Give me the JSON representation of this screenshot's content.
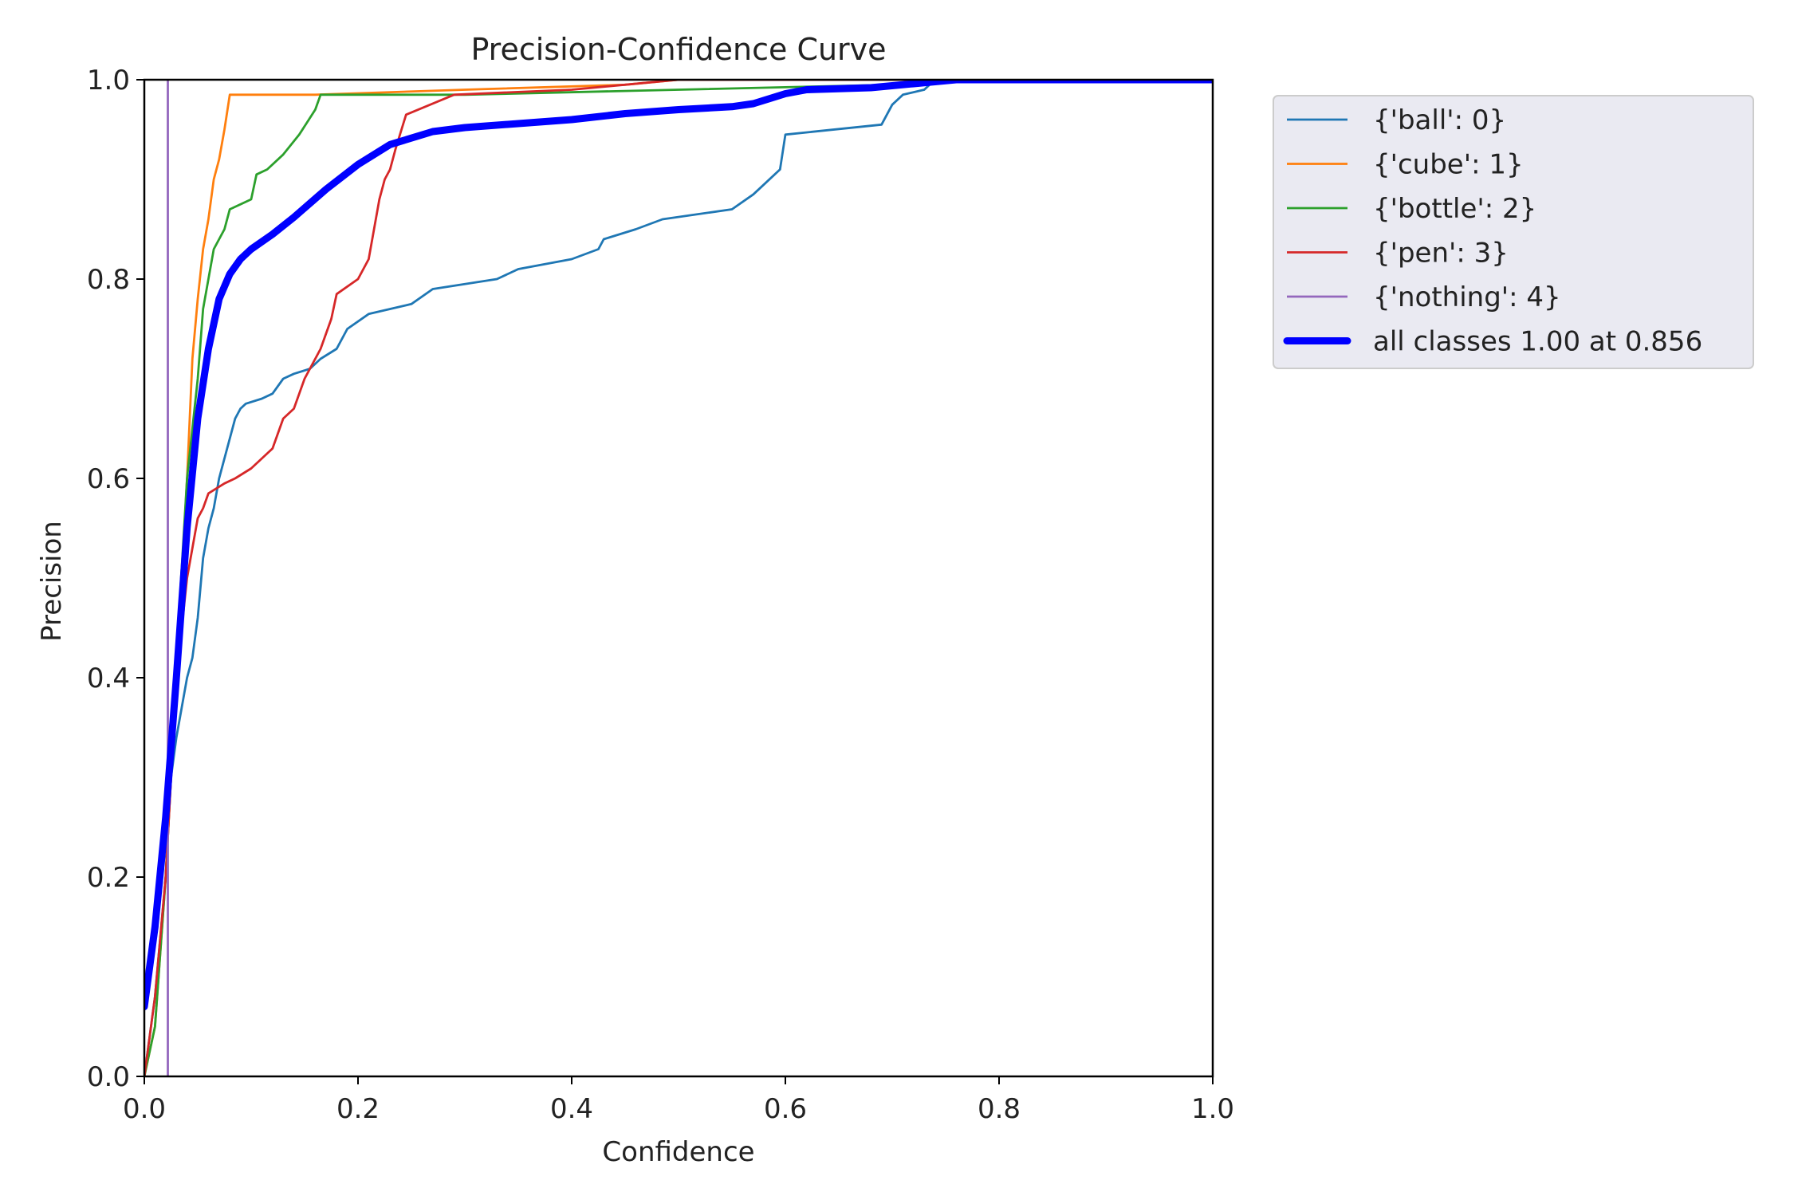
{
  "chart_data": {
    "type": "line",
    "title": "Precision-Confidence Curve",
    "xlabel": "Confidence",
    "ylabel": "Precision",
    "xlim": [
      0.0,
      1.0
    ],
    "ylim": [
      0.0,
      1.0
    ],
    "xticks": [
      "0.0",
      "0.2",
      "0.4",
      "0.6",
      "0.8",
      "1.0"
    ],
    "yticks": [
      "0.0",
      "0.2",
      "0.4",
      "0.6",
      "0.8",
      "1.0"
    ],
    "grid": false,
    "legend_position": "outside-upper-right",
    "series": [
      {
        "name": "{'ball': 0}",
        "color": "#1f77b4",
        "points": [
          [
            0.0,
            0.0
          ],
          [
            0.01,
            0.08
          ],
          [
            0.02,
            0.2
          ],
          [
            0.025,
            0.3
          ],
          [
            0.03,
            0.34
          ],
          [
            0.035,
            0.37
          ],
          [
            0.04,
            0.4
          ],
          [
            0.045,
            0.42
          ],
          [
            0.05,
            0.46
          ],
          [
            0.055,
            0.52
          ],
          [
            0.06,
            0.55
          ],
          [
            0.065,
            0.57
          ],
          [
            0.07,
            0.6
          ],
          [
            0.075,
            0.62
          ],
          [
            0.08,
            0.64
          ],
          [
            0.085,
            0.66
          ],
          [
            0.09,
            0.67
          ],
          [
            0.095,
            0.675
          ],
          [
            0.11,
            0.68
          ],
          [
            0.12,
            0.685
          ],
          [
            0.13,
            0.7
          ],
          [
            0.14,
            0.705
          ],
          [
            0.155,
            0.71
          ],
          [
            0.165,
            0.72
          ],
          [
            0.18,
            0.73
          ],
          [
            0.19,
            0.75
          ],
          [
            0.21,
            0.765
          ],
          [
            0.25,
            0.775
          ],
          [
            0.27,
            0.79
          ],
          [
            0.33,
            0.8
          ],
          [
            0.35,
            0.81
          ],
          [
            0.4,
            0.82
          ],
          [
            0.425,
            0.83
          ],
          [
            0.43,
            0.84
          ],
          [
            0.46,
            0.85
          ],
          [
            0.485,
            0.86
          ],
          [
            0.55,
            0.87
          ],
          [
            0.57,
            0.885
          ],
          [
            0.58,
            0.895
          ],
          [
            0.595,
            0.91
          ],
          [
            0.6,
            0.945
          ],
          [
            0.69,
            0.955
          ],
          [
            0.7,
            0.975
          ],
          [
            0.71,
            0.985
          ],
          [
            0.73,
            0.99
          ],
          [
            0.74,
            1.0
          ],
          [
            1.0,
            1.0
          ]
        ]
      },
      {
        "name": "{'cube': 1}",
        "color": "#ff7f0e",
        "points": [
          [
            0.0,
            0.0
          ],
          [
            0.01,
            0.05
          ],
          [
            0.02,
            0.2
          ],
          [
            0.03,
            0.4
          ],
          [
            0.04,
            0.6
          ],
          [
            0.045,
            0.72
          ],
          [
            0.05,
            0.78
          ],
          [
            0.055,
            0.83
          ],
          [
            0.06,
            0.86
          ],
          [
            0.065,
            0.9
          ],
          [
            0.07,
            0.92
          ],
          [
            0.075,
            0.95
          ],
          [
            0.08,
            0.985
          ],
          [
            0.16,
            0.985
          ],
          [
            0.3,
            0.99
          ],
          [
            0.45,
            0.995
          ],
          [
            0.5,
            1.0
          ],
          [
            1.0,
            1.0
          ]
        ]
      },
      {
        "name": "{'bottle': 2}",
        "color": "#2ca02c",
        "points": [
          [
            0.0,
            0.0
          ],
          [
            0.01,
            0.05
          ],
          [
            0.02,
            0.2
          ],
          [
            0.03,
            0.42
          ],
          [
            0.04,
            0.6
          ],
          [
            0.05,
            0.7
          ],
          [
            0.055,
            0.77
          ],
          [
            0.06,
            0.8
          ],
          [
            0.065,
            0.83
          ],
          [
            0.075,
            0.85
          ],
          [
            0.08,
            0.87
          ],
          [
            0.1,
            0.88
          ],
          [
            0.105,
            0.905
          ],
          [
            0.115,
            0.91
          ],
          [
            0.13,
            0.925
          ],
          [
            0.145,
            0.945
          ],
          [
            0.16,
            0.97
          ],
          [
            0.165,
            0.985
          ],
          [
            0.3,
            0.985
          ],
          [
            0.5,
            0.99
          ],
          [
            0.7,
            0.995
          ],
          [
            0.75,
            1.0
          ],
          [
            1.0,
            1.0
          ]
        ]
      },
      {
        "name": "{'pen': 3}",
        "color": "#d62728",
        "points": [
          [
            0.0,
            0.0
          ],
          [
            0.01,
            0.08
          ],
          [
            0.02,
            0.2
          ],
          [
            0.03,
            0.4
          ],
          [
            0.04,
            0.5
          ],
          [
            0.05,
            0.56
          ],
          [
            0.055,
            0.57
          ],
          [
            0.06,
            0.585
          ],
          [
            0.075,
            0.595
          ],
          [
            0.085,
            0.6
          ],
          [
            0.1,
            0.61
          ],
          [
            0.11,
            0.62
          ],
          [
            0.12,
            0.63
          ],
          [
            0.13,
            0.66
          ],
          [
            0.14,
            0.67
          ],
          [
            0.15,
            0.7
          ],
          [
            0.16,
            0.72
          ],
          [
            0.165,
            0.73
          ],
          [
            0.175,
            0.76
          ],
          [
            0.18,
            0.785
          ],
          [
            0.2,
            0.8
          ],
          [
            0.21,
            0.82
          ],
          [
            0.215,
            0.85
          ],
          [
            0.22,
            0.88
          ],
          [
            0.225,
            0.9
          ],
          [
            0.23,
            0.91
          ],
          [
            0.235,
            0.93
          ],
          [
            0.245,
            0.965
          ],
          [
            0.29,
            0.985
          ],
          [
            0.4,
            0.99
          ],
          [
            0.5,
            1.0
          ],
          [
            1.0,
            1.0
          ]
        ]
      },
      {
        "name": "{'nothing': 4}",
        "color": "#9467bd",
        "points": [
          [
            0.022,
            0.0
          ],
          [
            0.022,
            1.0
          ]
        ]
      },
      {
        "name": "all classes 1.00 at 0.856",
        "color": "#0000ff",
        "bold": true,
        "points": [
          [
            0.0,
            0.07
          ],
          [
            0.01,
            0.15
          ],
          [
            0.02,
            0.26
          ],
          [
            0.03,
            0.4
          ],
          [
            0.04,
            0.55
          ],
          [
            0.05,
            0.66
          ],
          [
            0.06,
            0.73
          ],
          [
            0.07,
            0.78
          ],
          [
            0.08,
            0.805
          ],
          [
            0.09,
            0.82
          ],
          [
            0.1,
            0.83
          ],
          [
            0.12,
            0.845
          ],
          [
            0.14,
            0.862
          ],
          [
            0.17,
            0.89
          ],
          [
            0.2,
            0.915
          ],
          [
            0.23,
            0.935
          ],
          [
            0.27,
            0.948
          ],
          [
            0.3,
            0.952
          ],
          [
            0.35,
            0.956
          ],
          [
            0.4,
            0.96
          ],
          [
            0.45,
            0.966
          ],
          [
            0.5,
            0.97
          ],
          [
            0.55,
            0.973
          ],
          [
            0.57,
            0.976
          ],
          [
            0.6,
            0.986
          ],
          [
            0.62,
            0.99
          ],
          [
            0.68,
            0.992
          ],
          [
            0.72,
            0.996
          ],
          [
            0.76,
            1.0
          ],
          [
            1.0,
            1.0
          ]
        ]
      }
    ]
  }
}
